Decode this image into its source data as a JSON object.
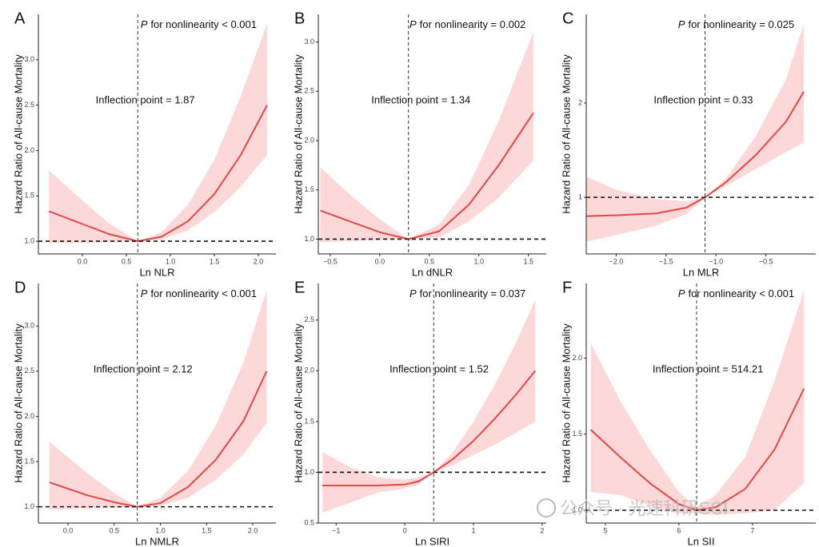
{
  "chart_data": [
    {
      "type": "line",
      "panel_label": "A",
      "p_italic": "P",
      "p_text": "for nonlinearity < 0.001",
      "annotation": "Inflection point = 1.87",
      "xlabel": "Ln NLR",
      "ylabel": "Hazard Ratio of All-cause Mortality",
      "xlim": [
        -0.5,
        2.2
      ],
      "ylim": [
        0.86,
        3.5
      ],
      "xticks": [
        {
          "value": 0,
          "label": "0.0"
        },
        0.5,
        {
          "value": 1,
          "label": "1.0"
        },
        1.5,
        {
          "value": 2,
          "label": "2.0"
        }
      ],
      "yticks": [
        {
          "value": 1,
          "label": "1.0"
        },
        1.5,
        {
          "value": 2,
          "label": "2.0"
        },
        2.5,
        {
          "value": 3,
          "label": "3.0"
        }
      ],
      "vline": 0.63,
      "hline": 1,
      "color": "#e04848",
      "band_color": "#fdd8d8",
      "x": [
        -0.38,
        0,
        0.3,
        0.63,
        0.9,
        1.2,
        1.5,
        1.8,
        2.1
      ],
      "values": [
        1.33,
        1.19,
        1.08,
        1.0,
        1.05,
        1.22,
        1.52,
        1.95,
        2.5
      ],
      "upper": [
        1.78,
        1.45,
        1.2,
        1.0,
        1.1,
        1.4,
        1.9,
        2.6,
        3.4
      ],
      "lower": [
        0.98,
        0.98,
        0.99,
        1.0,
        1.02,
        1.12,
        1.32,
        1.6,
        1.95
      ]
    },
    {
      "type": "line",
      "panel_label": "B",
      "p_italic": "P",
      "p_text": "for nonlinearity = 0.002",
      "annotation": "Inflection point = 1.34",
      "xlabel": "Ln dNLR",
      "ylabel": "Hazard Ratio of All-cause Mortality",
      "xlim": [
        -0.62,
        1.68
      ],
      "ylim": [
        0.85,
        3.28
      ],
      "xticks": [
        {
          "value": -0.5,
          "label": "−0.5"
        },
        {
          "value": 0,
          "label": "0.0"
        },
        0.5,
        {
          "value": 1,
          "label": "1.0"
        },
        1.5
      ],
      "yticks": [
        {
          "value": 1,
          "label": "1.0"
        },
        1.5,
        {
          "value": 2,
          "label": "2.0"
        },
        2.5,
        {
          "value": 3,
          "label": "3.0"
        }
      ],
      "vline": 0.29,
      "hline": 1,
      "color": "#e04848",
      "band_color": "#fdd8d8",
      "x": [
        -0.6,
        -0.3,
        0,
        0.29,
        0.6,
        0.9,
        1.2,
        1.55
      ],
      "values": [
        1.29,
        1.18,
        1.07,
        1.0,
        1.08,
        1.35,
        1.75,
        2.28
      ],
      "upper": [
        1.73,
        1.45,
        1.2,
        1.0,
        1.15,
        1.55,
        2.2,
        3.1
      ],
      "lower": [
        0.97,
        0.98,
        0.99,
        1.0,
        1.02,
        1.18,
        1.42,
        1.8
      ]
    },
    {
      "type": "line",
      "panel_label": "C",
      "p_italic": "P",
      "p_text": "for nonlinearity = 0.025",
      "annotation": "Inflection point = 0.33",
      "xlabel": "Ln MLR",
      "ylabel": "Hazard Ratio of All-cause Mortality",
      "xlim": [
        -2.3,
        0
      ],
      "ylim": [
        0.4,
        2.94
      ],
      "xticks": [
        {
          "value": -2,
          "label": "−2.0"
        },
        {
          "value": -1.5,
          "label": "−1.5"
        },
        {
          "value": -1,
          "label": "−1.0"
        },
        {
          "value": -0.5,
          "label": "−0.5"
        }
      ],
      "yticks": [
        1,
        2
      ],
      "vline": -1.11,
      "hline": 1,
      "color": "#e04848",
      "band_color": "#fdd8d8",
      "x": [
        -2.3,
        -2.0,
        -1.6,
        -1.3,
        -1.11,
        -0.9,
        -0.6,
        -0.3,
        -0.12
      ],
      "values": [
        0.8,
        0.81,
        0.83,
        0.89,
        1.0,
        1.16,
        1.45,
        1.8,
        2.12
      ],
      "upper": [
        1.22,
        1.08,
        0.98,
        0.96,
        1.0,
        1.2,
        1.65,
        2.25,
        2.84
      ],
      "lower": [
        0.53,
        0.6,
        0.7,
        0.82,
        1.0,
        1.12,
        1.3,
        1.48,
        1.58
      ]
    },
    {
      "type": "line",
      "panel_label": "D",
      "p_italic": "P",
      "p_text": "for nonlinearity < 0.001",
      "annotation": "Inflection point = 2.12",
      "xlabel": "Ln NMLR",
      "ylabel": "Hazard Ratio of All-cause Mortality",
      "xlim": [
        -0.32,
        2.25
      ],
      "ylim": [
        0.82,
        3.47
      ],
      "xticks": [
        {
          "value": 0,
          "label": "0.0"
        },
        0.5,
        {
          "value": 1,
          "label": "1.0"
        },
        1.5,
        {
          "value": 2,
          "label": "2.0"
        }
      ],
      "yticks": [
        {
          "value": 1,
          "label": "1.0"
        },
        1.5,
        {
          "value": 2,
          "label": "2.0"
        },
        2.5,
        {
          "value": 3,
          "label": "3.0"
        }
      ],
      "vline": 0.75,
      "hline": 1,
      "color": "#e04848",
      "band_color": "#fdd8d8",
      "x": [
        -0.2,
        0.2,
        0.5,
        0.75,
        1.0,
        1.3,
        1.6,
        1.9,
        2.15
      ],
      "values": [
        1.27,
        1.13,
        1.05,
        1.0,
        1.04,
        1.22,
        1.52,
        1.95,
        2.5
      ],
      "upper": [
        1.72,
        1.38,
        1.15,
        1.0,
        1.1,
        1.4,
        1.9,
        2.6,
        3.4
      ],
      "lower": [
        0.97,
        0.98,
        0.99,
        1.0,
        1.01,
        1.1,
        1.3,
        1.58,
        1.93
      ]
    },
    {
      "type": "line",
      "panel_label": "E",
      "p_italic": "P",
      "p_text": "for nonlinearity = 0.037",
      "annotation": "Inflection point = 1.52",
      "xlabel": "Ln SIRI",
      "ylabel": "Hazard Ratio of All-cause Mortality",
      "xlim": [
        -1.26,
        2.06
      ],
      "ylim": [
        0.5,
        2.86
      ],
      "xticks": [
        {
          "value": -1,
          "label": "−1"
        },
        0,
        1,
        2
      ],
      "yticks": [
        0.5,
        {
          "value": 1,
          "label": "1.0"
        },
        1.5,
        {
          "value": 2,
          "label": "2.0"
        },
        2.5
      ],
      "vline": 0.42,
      "hline": 1,
      "color": "#e04848",
      "band_color": "#fdd8d8",
      "x": [
        -1.2,
        -0.8,
        -0.4,
        0,
        0.2,
        0.42,
        0.7,
        1.0,
        1.3,
        1.6,
        1.9
      ],
      "values": [
        0.87,
        0.87,
        0.87,
        0.88,
        0.91,
        1.0,
        1.13,
        1.31,
        1.52,
        1.75,
        2.0
      ],
      "upper": [
        1.2,
        1.05,
        0.95,
        0.93,
        0.95,
        1.0,
        1.2,
        1.5,
        1.85,
        2.25,
        2.7
      ],
      "lower": [
        0.6,
        0.7,
        0.8,
        0.84,
        0.88,
        1.0,
        1.07,
        1.17,
        1.27,
        1.38,
        1.5
      ]
    },
    {
      "type": "line",
      "panel_label": "F",
      "p_italic": "P",
      "p_text": "for nonlinearity < 0.001",
      "annotation": "Inflection point = 514.21",
      "xlabel": "Ln SII",
      "ylabel": "Hazard Ratio of All-cause Mortality",
      "xlim": [
        4.74,
        7.86
      ],
      "ylim": [
        0.916,
        2.49
      ],
      "xticks": [
        5,
        6,
        7
      ],
      "yticks": [
        {
          "value": 1,
          "label": "1.0"
        },
        1.5,
        {
          "value": 2,
          "label": "2.0"
        }
      ],
      "vline": 6.24,
      "hline": 1,
      "color": "#e04848",
      "band_color": "#fdd8d8",
      "x": [
        4.8,
        5.2,
        5.6,
        6.0,
        6.24,
        6.5,
        6.9,
        7.3,
        7.7
      ],
      "values": [
        1.53,
        1.35,
        1.18,
        1.04,
        1.0,
        1.02,
        1.14,
        1.4,
        1.8
      ],
      "upper": [
        2.1,
        1.72,
        1.4,
        1.12,
        1.02,
        1.1,
        1.35,
        1.85,
        2.45
      ],
      "lower": [
        1.12,
        1.1,
        1.03,
        0.98,
        0.98,
        0.97,
        0.98,
        1.0,
        1.18
      ]
    }
  ],
  "watermark": "公众号 · 光速科研SCI"
}
